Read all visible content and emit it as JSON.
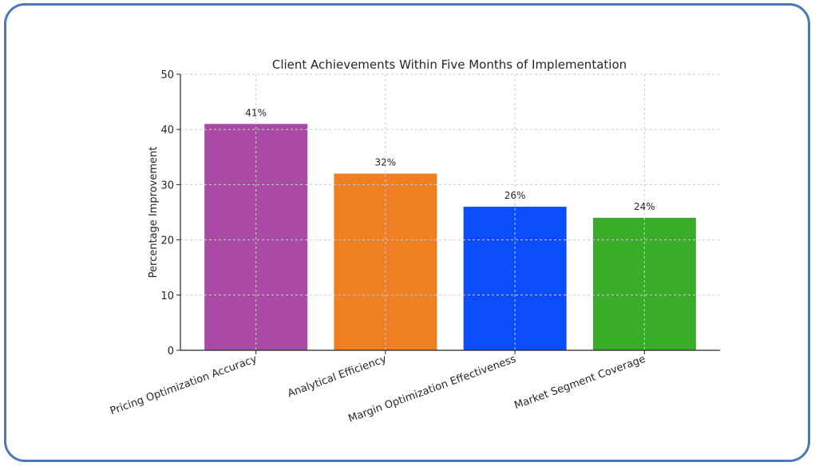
{
  "chart_data": {
    "type": "bar",
    "title": "Client Achievements Within Five Months of Implementation",
    "xlabel": "",
    "ylabel": "Percentage Improvement",
    "categories": [
      "Pricing Optimization Accuracy",
      "Analytical Efficiency",
      "Margin Optimization Effectiveness",
      "Market Segment Coverage"
    ],
    "values": [
      41,
      32,
      26,
      24
    ],
    "data_labels": [
      "41%",
      "32%",
      "26%",
      "24%"
    ],
    "colors": [
      "#ab4aa6",
      "#f07e22",
      "#0b4cfb",
      "#3aad2b"
    ],
    "ylim": [
      0,
      50
    ],
    "yticks": [
      0,
      10,
      20,
      30,
      40,
      50
    ],
    "grid": true,
    "legend": "none"
  }
}
